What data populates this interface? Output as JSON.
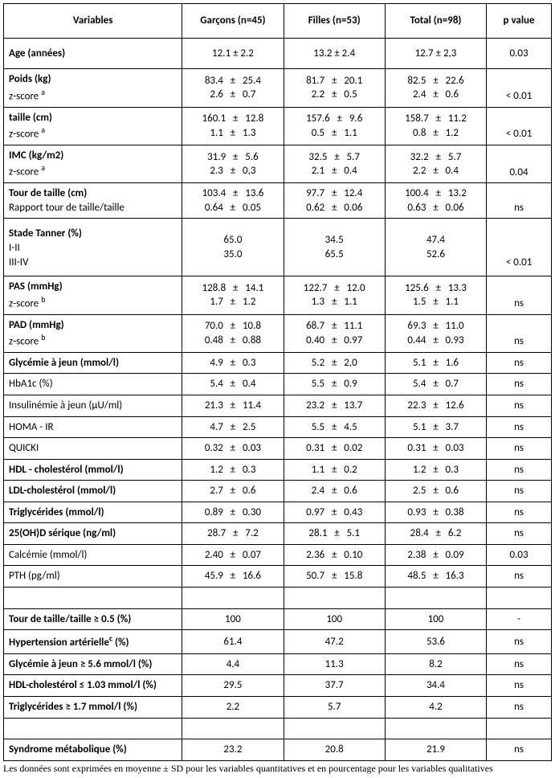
{
  "headers": {
    "v": "Variables",
    "g": "Garçons (n=45)",
    "f": "Filles (n=53)",
    "t": "Total (n=98)",
    "p": "p value"
  },
  "rows": [
    {
      "type": "single",
      "pad": true,
      "bold": true,
      "label": "Age (années)",
      "g": "12.1 ± 2.2",
      "f": "13.2 ± 2.4",
      "t": "12.7 ± 2,3",
      "p": "0.03"
    },
    {
      "type": "double",
      "l1": "Poids (kg)",
      "sup": "a",
      "l2": "z-score ",
      "g1": "83.4   ±   25.4",
      "g2": "2.6   ±   0.7",
      "f1": "81.7   ±   20.1",
      "f2": "2.2   ±   0.5",
      "t1": "82.5   ±   22.6",
      "t2": "2.4   ±   0.6",
      "p": "< 0.01"
    },
    {
      "type": "double",
      "l1": "taille (cm)",
      "sup": "a",
      "l2": "z-score ",
      "g1": "160.1   ±   12.8",
      "g2": "1.1   ±   1.3",
      "f1": "157.6   ±   9.6",
      "f2": "0.5   ±   1.1",
      "t1": "158.7   ±   11.2",
      "t2": "0.8   ±   1.2",
      "p": "< 0.01"
    },
    {
      "type": "double",
      "l1": "IMC (kg/m2)",
      "sup": "a",
      "l2": "z-score ",
      "g1": "31.9   ±   5.6",
      "g2": "2.3   ±   0,3",
      "f1": "32.5   ±   5.7",
      "f2": "2.1   ±   0.4",
      "t1": "32.2   ±   5.7",
      "t2": "2.2   ±   0.4",
      "p": "0.04"
    },
    {
      "type": "double",
      "l1": "Tour de taille (cm)",
      "l2": "Rapport tour de taille/taille",
      "g1": "103.4   ±   13.6",
      "g2": "0.64   ±   0.05",
      "f1": "97.7   ±   12.4",
      "f2": "0.62   ±   0.06",
      "t1": "100.4   ±   13.2",
      "t2": "0.63   ±   0.06",
      "p": "ns"
    },
    {
      "type": "tanner",
      "l0": "Stade Tanner (%)",
      "l1": "I-II",
      "l2": "III-IV",
      "g1": "65.0",
      "g2": "35.0",
      "f1": "34.5",
      "f2": "65.5",
      "t1": "47.4",
      "t2": "52.6",
      "p": "< 0.01"
    },
    {
      "type": "double",
      "l1": "PAS (mmHg)",
      "sup": "b",
      "l2": "z-score ",
      "g1": "128.8   ±   14.1",
      "g2": "1.7   ±   1.2",
      "f1": "122.7   ±   12.0",
      "f2": "1.3   ±   1.1",
      "t1": "125.6   ±   13.3",
      "t2": "1.5   ±   1.1",
      "p": "ns"
    },
    {
      "type": "double",
      "l1": "PAD (mmHg)",
      "sup": "b",
      "l2": "z-score ",
      "g1": "70.0   ±   10.8",
      "g2": "0.48   ±   0.88",
      "f1": "68.7   ±   11.1",
      "f2": "0.40   ±   0.97",
      "t1": "69.3   ±   11.0",
      "t2": "0.44   ±   0.93",
      "p": "ns"
    },
    {
      "type": "single",
      "bold": true,
      "label": "Glycémie à jeun (mmol/l)",
      "g": "4.9   ±   0.3",
      "f": "5.2   ±   2,0",
      "t": "5.1   ±   1.6",
      "p": "ns"
    },
    {
      "type": "single",
      "label": "HbA1c (%)",
      "g": "5.4   ±   0.4",
      "f": "5.5   ±   0.9",
      "t": "5.4   ±   0.7",
      "p": "ns"
    },
    {
      "type": "single",
      "label": "Insulinémie à jeun (µU/ml)",
      "g": "21.3   ±   11.4",
      "f": "23.2   ±   13.7",
      "t": "22.3   ±   12.6",
      "p": "ns"
    },
    {
      "type": "single",
      "label": "HOMA - IR",
      "g": "4.7   ±   2.5",
      "f": "5.5   ±   4.5",
      "t": "5.1   ±   3.7",
      "p": "ns"
    },
    {
      "type": "single",
      "label": "QUICKI",
      "g": "0.32   ±   0.03",
      "f": "0.31   ±   0.02",
      "t": "0.31   ±   0.03",
      "p": "ns"
    },
    {
      "type": "single",
      "bold": true,
      "label": "HDL - cholestérol (mmol/l)",
      "g": "1.2   ±   0.3",
      "f": "1.1   ±   0.2",
      "t": "1.2   ±   0.3",
      "p": "ns"
    },
    {
      "type": "single",
      "bold": true,
      "label": "LDL-cholestérol (mmol/l)",
      "g": "2.7   ±   0.6",
      "f": "2.4   ±   0.6",
      "t": "2.5   ±   0.6",
      "p": "ns"
    },
    {
      "type": "single",
      "bold": true,
      "label": "Triglycérides (mmol/l)",
      "g": "0.89   ±   0.30",
      "f": "0.97   ±   0.43",
      "t": "0.93   ±   0.38",
      "p": "ns"
    },
    {
      "type": "single",
      "bold": true,
      "label": "25(OH)D sérique (ng/ml)",
      "g": "28.7   ±   7.2",
      "f": "28.1   ±   5.1",
      "t": "28.4   ±   6.2",
      "p": "ns"
    },
    {
      "type": "single",
      "label": "Calcémie (mmol/l)",
      "g": "2.40   ±   0.07",
      "f": "2.36   ±   0.10",
      "t": "2.38   ±   0.09",
      "p": "0.03"
    },
    {
      "type": "single",
      "label": "PTH (pg/ml)",
      "g": "45.9   ±   16.6",
      "f": "50.7   ±   15.8",
      "t": "48.5   ±   16.3",
      "p": "ns"
    },
    {
      "type": "empty"
    },
    {
      "type": "single",
      "bold": true,
      "label": "Tour de taille/taille ≥ 0.5 (%)",
      "g": "100",
      "f": "100",
      "t": "100",
      "p": "-"
    },
    {
      "type": "single",
      "bold": true,
      "label_html": "Hypertension artérielle<span class=\"sup\">c</span> (%)",
      "g": "61.4",
      "f": "47.2",
      "t": "53.6",
      "p": "ns"
    },
    {
      "type": "single",
      "bold": true,
      "label": "Glycémie à jeun ≥ 5.6 mmol/l (%)",
      "g": "4.4",
      "f": "11.3",
      "t": "8.2",
      "p": "ns"
    },
    {
      "type": "single",
      "bold": true,
      "label": "HDL-cholestérol ≤ 1.03 mmol/l (%)",
      "g": "29.5",
      "f": "37.7",
      "t": "34.4",
      "p": "ns"
    },
    {
      "type": "single",
      "bold": true,
      "label": "Triglycérides ≥ 1.7 mmol/l (%)",
      "g": "2.2",
      "f": "5.7",
      "t": "4.2",
      "p": "ns"
    },
    {
      "type": "empty"
    },
    {
      "type": "single",
      "bold": true,
      "label": "Syndrome métabolique (%)",
      "g": "23.2",
      "f": "20.8",
      "t": "21.9",
      "p": "ns"
    }
  ],
  "footnote": "Les données sont exprimées en moyenne ± SD pour les variables quantitatives et en pourcentage pour les variables qualitatives"
}
